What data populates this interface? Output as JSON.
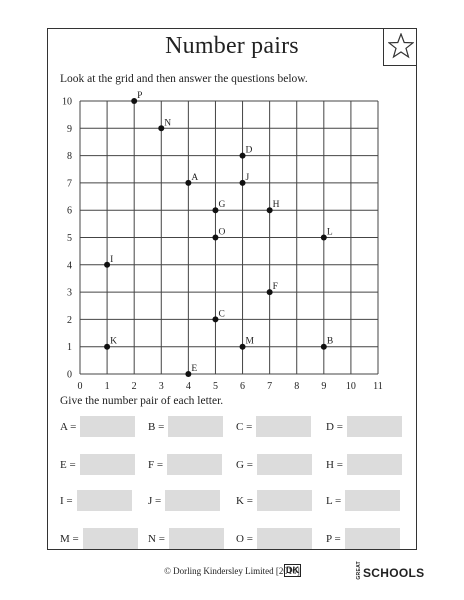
{
  "title": "Number pairs",
  "star_icon": "star-icon",
  "instructions": "Look at the grid and then answer the questions below.",
  "question": "Give the number pair of each letter.",
  "chart_data": {
    "type": "scatter",
    "xlim": [
      0,
      11
    ],
    "ylim": [
      0,
      10
    ],
    "x_ticks": [
      "0",
      "1",
      "2",
      "3",
      "4",
      "5",
      "6",
      "7",
      "8",
      "9",
      "10",
      "11"
    ],
    "y_ticks": [
      "0",
      "1",
      "2",
      "3",
      "4",
      "5",
      "6",
      "7",
      "8",
      "9",
      "10"
    ],
    "grid": true,
    "points": [
      {
        "label": "P",
        "x": 2,
        "y": 10
      },
      {
        "label": "N",
        "x": 3,
        "y": 9
      },
      {
        "label": "D",
        "x": 6,
        "y": 8
      },
      {
        "label": "A",
        "x": 4,
        "y": 7
      },
      {
        "label": "J",
        "x": 6,
        "y": 7
      },
      {
        "label": "G",
        "x": 5,
        "y": 6
      },
      {
        "label": "H",
        "x": 7,
        "y": 6
      },
      {
        "label": "O",
        "x": 5,
        "y": 5
      },
      {
        "label": "L",
        "x": 9,
        "y": 5
      },
      {
        "label": "I",
        "x": 1,
        "y": 4
      },
      {
        "label": "F",
        "x": 7,
        "y": 3
      },
      {
        "label": "C",
        "x": 5,
        "y": 2
      },
      {
        "label": "K",
        "x": 1,
        "y": 1
      },
      {
        "label": "M",
        "x": 6,
        "y": 1
      },
      {
        "label": "B",
        "x": 9,
        "y": 1
      },
      {
        "label": "E",
        "x": 4,
        "y": 0
      }
    ]
  },
  "answers": [
    {
      "label": "A ="
    },
    {
      "label": "B ="
    },
    {
      "label": "C ="
    },
    {
      "label": "D ="
    },
    {
      "label": "E ="
    },
    {
      "label": "F ="
    },
    {
      "label": "G ="
    },
    {
      "label": "H ="
    },
    {
      "label": "I ="
    },
    {
      "label": "J ="
    },
    {
      "label": "K ="
    },
    {
      "label": "L ="
    },
    {
      "label": "M ="
    },
    {
      "label": "N ="
    },
    {
      "label": "O ="
    },
    {
      "label": "P ="
    }
  ],
  "footer": "© Dorling Kindersley Limited [2010]",
  "dk_logo": "DK",
  "logo_great": "GREAT",
  "logo_schools": "SCHOOLS"
}
